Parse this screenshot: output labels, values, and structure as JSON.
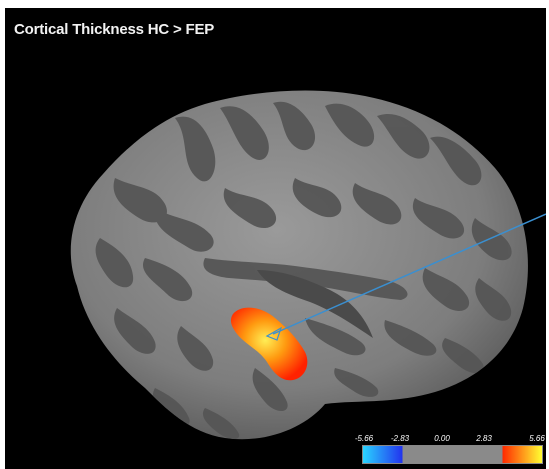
{
  "title": "Cortical Thickness HC > FEP",
  "colorbar": {
    "ticks": [
      "-5.66",
      "-2.83",
      "0.00",
      "2.83",
      "5.66"
    ],
    "colors": {
      "neg_low": "#2ad4ff",
      "neg_high": "#2233ee",
      "neutral": "#8a8a8a",
      "pos_low": "#ff2a00",
      "pos_high": "#ffff33"
    }
  },
  "surface": {
    "gyri_color": "#8c8c8c",
    "sulci_color": "#595959",
    "cluster_colors": [
      "#ff2a00",
      "#ff7a00",
      "#ffdd33"
    ],
    "pointer_color": "#3a8fd0"
  }
}
